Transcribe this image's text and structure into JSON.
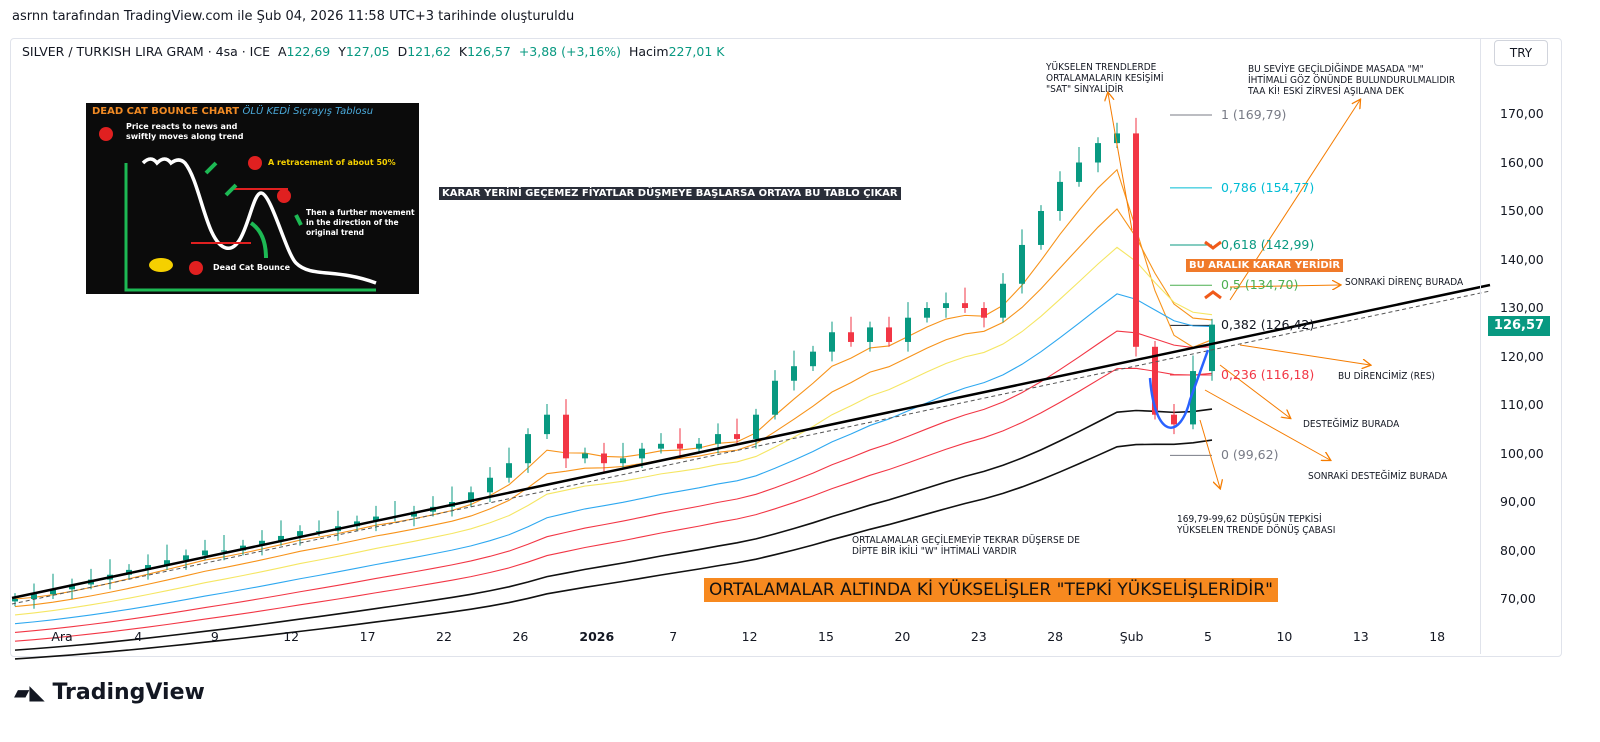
{
  "caption": "asrnn tarafından TradingView.com ile Şub 04, 2026 11:58 UTC+3 tarihinde oluşturuldu",
  "legend": {
    "symbol": "SILVER / TURKISH LIRA GRAM · 4sa · ICE",
    "open_label": "A",
    "open": "122,69",
    "high_label": "Y",
    "high": "127,05",
    "low_label": "D",
    "low": "121,62",
    "close_label": "K",
    "close": "126,57",
    "change": "+3,88 (+3,16%)",
    "volume_label": "Hacim",
    "volume": "227,01 K"
  },
  "currency": "TRY",
  "last_price": "126,57",
  "brand": "TradingView",
  "colors": {
    "up": "#089981",
    "down": "#f23645",
    "fib_0786": "#00bcd4",
    "fib_0618": "#089981",
    "fib_05": "#4caf50",
    "fib_0236": "#f23645",
    "annotation": "#f57c00",
    "trendline": "#000000"
  },
  "chart_data": {
    "type": "candlestick",
    "timeframe": "4sa",
    "y_ticks": [
      "170,00",
      "160,00",
      "150,00",
      "140,00",
      "130,00",
      "120,00",
      "110,00",
      "100,00",
      "90,00",
      "80,00",
      "70,00"
    ],
    "ylim": [
      66,
      176
    ],
    "x_ticks": [
      "Ara",
      "4",
      "9",
      "12",
      "17",
      "22",
      "26",
      "2026",
      "7",
      "12",
      "15",
      "20",
      "23",
      "28",
      "Şub",
      "5",
      "10",
      "13",
      "18"
    ],
    "closes": [
      70,
      71,
      72,
      73,
      74,
      75,
      76,
      77,
      78,
      79,
      80,
      80,
      81,
      82,
      83,
      84,
      84,
      85,
      86,
      87,
      87,
      88,
      89,
      90,
      92,
      95,
      98,
      104,
      108,
      99,
      100,
      98,
      99,
      101,
      102,
      101,
      102,
      104,
      103,
      108,
      115,
      118,
      121,
      125,
      123,
      126,
      123,
      128,
      130,
      131,
      130,
      128,
      135,
      143,
      150,
      156,
      160,
      164,
      166,
      122,
      108,
      106,
      117,
      126.57
    ],
    "moving_average_periods": [
      5,
      9,
      14,
      22,
      30,
      40,
      55,
      70
    ],
    "fibonacci": [
      {
        "label": "1 (169,79)",
        "value": 169.79
      },
      {
        "label": "0,786 (154,77)",
        "value": 154.77
      },
      {
        "label": "0,618 (142,99)",
        "value": 142.99
      },
      {
        "label": "0,5 (134,70)",
        "value": 134.7
      },
      {
        "label": "0,382 (126,42)",
        "value": 126.42
      },
      {
        "label": "0,236 (116,18)",
        "value": 116.18
      },
      {
        "label": "0 (99,62)",
        "value": 99.62
      }
    ]
  },
  "annotations": {
    "sat": "YÜKSELEN TRENDLERDE\nORTALAMALARIN KESİŞİMİ\n\"SAT\" SİNYALİDİR",
    "m": "BU SEVİYE GEÇİLDİĞİNDE MASADA \"M\"\nİHTİMALİ GÖZ ÖNÜNDE BULUNDURULMALIDIR\nTAA Kİ! ESKİ ZİRVESİ AŞILANA DEK",
    "karar_tablo": "KARAR YERİNİ GEÇEMEZ FİYATLAR DÜŞMEYE BAŞLARSA ORTAYA BU TABLO ÇIKAR",
    "karar_yeri": "BU ARALIK KARAR YERİDİR",
    "sonraki_direnc": "SONRAKİ DİRENÇ BURADA",
    "direnc": "BU DİRENCİMİZ (RES)",
    "destek": "DESTEĞİMİZ BURADA",
    "sonraki_destek": "SONRAKİ DESTEĞİMİZ BURADA",
    "tepki": "169,79-99,62 DÜŞÜŞÜN TEPKİSİ\nYÜKSELEN TRENDE DÖNÜŞ ÇABASI",
    "w": "ORTALAMALAR GEÇİLEMEYİP TEKRAR DÜŞERSE DE\nDİPTE BİR İKİLİ \"W\" İHTİMALİ VARDIR",
    "banner": "ORTALAMALAR ALTINDA Kİ YÜKSELİŞLER \"TEPKİ YÜKSELİŞLERİDİR\""
  },
  "dead_cat": {
    "title": "DEAD CAT BOUNCE CHART",
    "title_tr": "ÖLÜ KEDİ Sıçrayış Tablosu",
    "step1": "Price reacts to news and\nswiftly moves along trend",
    "step2": "Dead Cat Bounce",
    "step3": "A retracement of about 50%",
    "step4": "Then a further movement\nin the direction of the\noriginal trend"
  }
}
